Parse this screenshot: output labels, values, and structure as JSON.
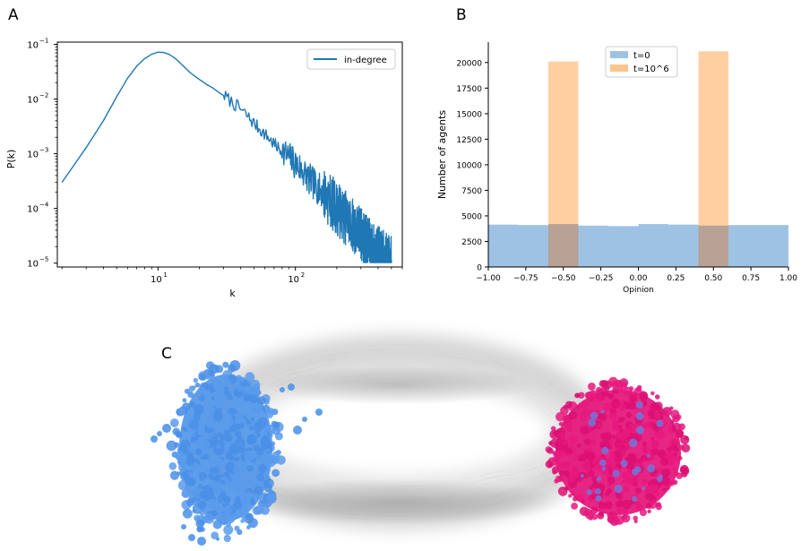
{
  "panels": {
    "a": "A",
    "b": "B",
    "c": "C"
  },
  "chart_data": [
    {
      "panel": "A",
      "type": "line",
      "xscale": "log",
      "yscale": "log",
      "xlabel": "k",
      "ylabel": "P(k)",
      "xlim": [
        1.85,
        600
      ],
      "ylim": [
        8.5e-06,
        0.11
      ],
      "grid": false,
      "legend_position": "top-right",
      "x_ticks": [
        {
          "value": 10,
          "label": "10",
          "exp": "1"
        },
        {
          "value": 100,
          "label": "10",
          "exp": "2"
        }
      ],
      "y_ticks": [
        {
          "value": 1e-05,
          "label": "10",
          "exp": "−5"
        },
        {
          "value": 0.0001,
          "label": "10",
          "exp": "−4"
        },
        {
          "value": 0.001,
          "label": "10",
          "exp": "−3"
        },
        {
          "value": 0.01,
          "label": "10",
          "exp": "−2"
        },
        {
          "value": 0.1,
          "label": "10",
          "exp": "−1"
        }
      ],
      "series": [
        {
          "name": "in-degree",
          "color": "#1f77b4",
          "points": [
            [
              2,
              0.0003
            ],
            [
              3,
              0.0013
            ],
            [
              4,
              0.004
            ],
            [
              5,
              0.011
            ],
            [
              6,
              0.024
            ],
            [
              7,
              0.04
            ],
            [
              8,
              0.055
            ],
            [
              9,
              0.066
            ],
            [
              10,
              0.072
            ],
            [
              11,
              0.071
            ],
            [
              12,
              0.066
            ],
            [
              13,
              0.058
            ],
            [
              14,
              0.05
            ],
            [
              15,
              0.042
            ],
            [
              17,
              0.031
            ],
            [
              19,
              0.025
            ],
            [
              21,
              0.021
            ],
            [
              23,
              0.018
            ],
            [
              25,
              0.016
            ],
            [
              28,
              0.013
            ],
            [
              31,
              0.011
            ],
            [
              35,
              0.0085
            ],
            [
              40,
              0.0065
            ],
            [
              45,
              0.0048
            ],
            [
              50,
              0.0036
            ],
            [
              56,
              0.0027
            ],
            [
              63,
              0.002
            ],
            [
              70,
              0.0015
            ],
            [
              80,
              0.0011
            ],
            [
              90,
              0.00085
            ],
            [
              100,
              0.00065
            ],
            [
              112,
              0.0005
            ],
            [
              125,
              0.00035
            ],
            [
              140,
              0.00026
            ],
            [
              160,
              0.00019
            ],
            [
              180,
              0.00014
            ],
            [
              200,
              0.0001
            ],
            [
              230,
              7e-05
            ],
            [
              260,
              5e-05
            ],
            [
              300,
              3.5e-05
            ],
            [
              350,
              2e-05
            ],
            [
              400,
              1.5e-05
            ],
            [
              450,
              1.2e-05
            ],
            [
              500,
              1e-05
            ]
          ]
        }
      ]
    },
    {
      "panel": "B",
      "type": "bar",
      "xlabel": "Opinion",
      "ylabel": "Number of agents",
      "xlim": [
        -1.0,
        1.0
      ],
      "ylim": [
        0,
        22000
      ],
      "grid": false,
      "legend_position": "top-center",
      "x_ticks": [
        -1.0,
        -0.75,
        -0.5,
        -0.25,
        0.0,
        0.25,
        0.5,
        0.75,
        1.0
      ],
      "x_tick_labels": [
        "−1.00",
        "−0.75",
        "−0.50",
        "−0.25",
        "0.00",
        "0.25",
        "0.50",
        "0.75",
        "1.00"
      ],
      "y_ticks": [
        0,
        2500,
        5000,
        7500,
        10000,
        12500,
        15000,
        17500,
        20000
      ],
      "bin_edges": [
        -1.0,
        -0.8,
        -0.6,
        -0.4,
        -0.2,
        0.0,
        0.2,
        0.4,
        0.6,
        0.8,
        1.0
      ],
      "series": [
        {
          "name": "t=0",
          "color": "#9ec2e4",
          "values": [
            4150,
            4100,
            4200,
            4050,
            4000,
            4200,
            4150,
            4050,
            4100,
            4100
          ]
        },
        {
          "name": "t=10^6",
          "color": "#ffc58c",
          "values": [
            0,
            0,
            20100,
            0,
            0,
            0,
            0,
            21100,
            0,
            0
          ]
        }
      ]
    },
    {
      "panel": "C",
      "type": "network",
      "clusters": [
        {
          "color": "#4f95ea"
        },
        {
          "color": "#e5147a"
        }
      ],
      "edge_color": "#9a9a9a"
    }
  ]
}
